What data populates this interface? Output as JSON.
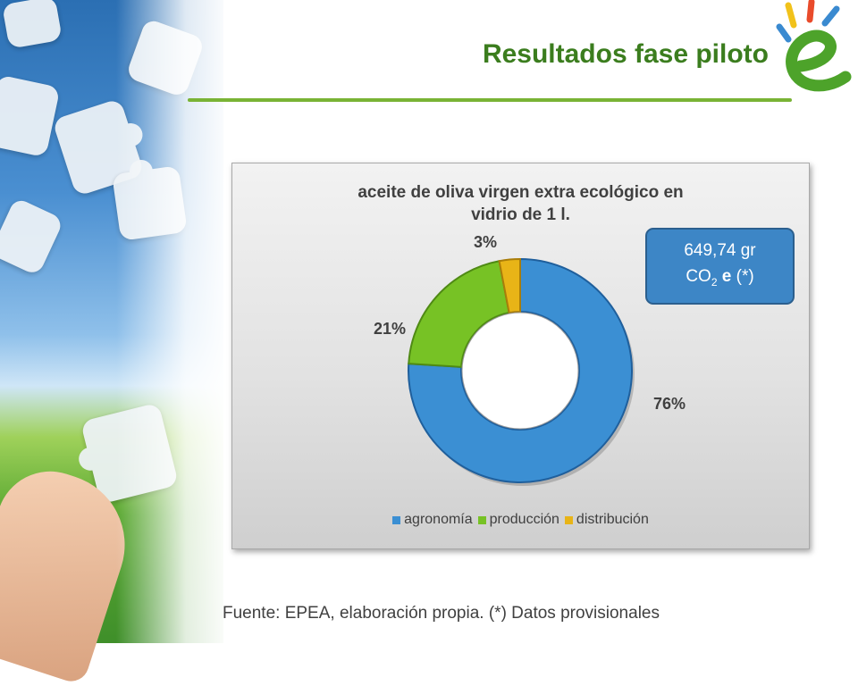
{
  "header": {
    "title": "Resultados fase piloto"
  },
  "chart_data": {
    "type": "pie",
    "title_lines": [
      "aceite de oliva virgen extra ecológico en",
      "vidrio de 1 l."
    ],
    "categories": [
      "agronomía",
      "producción",
      "distribución"
    ],
    "values": [
      76,
      21,
      3
    ],
    "labels": [
      "76%",
      "21%",
      "3%"
    ],
    "colors": [
      "#3b8fd3",
      "#77c225",
      "#e8b417"
    ],
    "legend_position": "bottom"
  },
  "co2_box": {
    "value": "649,74 gr",
    "unit_prefix": "CO",
    "unit_sub": "2",
    "unit_suffix": " e",
    "note": " (*)"
  },
  "footer": {
    "source": "Fuente: EPEA, elaboración propia.  (*) Datos provisionales"
  }
}
